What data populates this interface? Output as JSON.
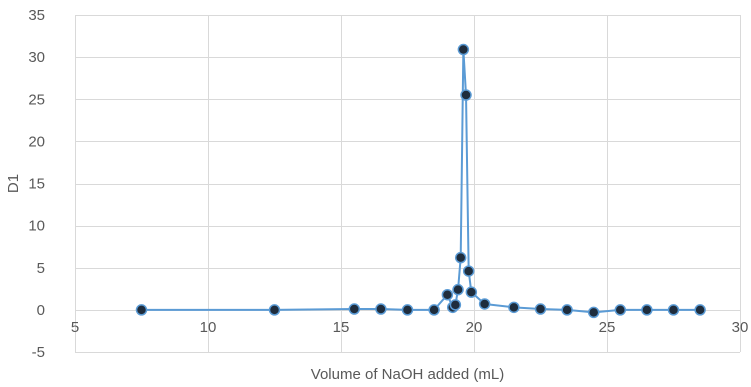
{
  "chart_data": {
    "type": "scatter",
    "xlabel": "Volume of NaOH added (mL)",
    "ylabel": "D1",
    "xlim": [
      5,
      30
    ],
    "ylim": [
      -5,
      35
    ],
    "x_ticks": [
      5,
      10,
      15,
      20,
      25,
      30
    ],
    "y_ticks": [
      -5,
      0,
      5,
      10,
      15,
      20,
      25,
      30,
      35
    ],
    "grid": true,
    "legend": "none",
    "series": [
      {
        "color": "#5b9bd5",
        "marker_color": "#1f2d3d",
        "points": [
          {
            "x": 7.5,
            "y": 0.0
          },
          {
            "x": 12.5,
            "y": 0.0
          },
          {
            "x": 15.5,
            "y": 0.1
          },
          {
            "x": 16.5,
            "y": 0.1
          },
          {
            "x": 17.5,
            "y": 0.0
          },
          {
            "x": 18.5,
            "y": 0.0
          },
          {
            "x": 19.0,
            "y": 1.8
          },
          {
            "x": 19.2,
            "y": 0.3
          },
          {
            "x": 19.3,
            "y": 0.6
          },
          {
            "x": 19.4,
            "y": 2.4
          },
          {
            "x": 19.5,
            "y": 6.2
          },
          {
            "x": 19.6,
            "y": 30.9
          },
          {
            "x": 19.7,
            "y": 25.5
          },
          {
            "x": 19.8,
            "y": 4.6
          },
          {
            "x": 19.9,
            "y": 2.1
          },
          {
            "x": 20.4,
            "y": 0.7
          },
          {
            "x": 21.5,
            "y": 0.3
          },
          {
            "x": 22.5,
            "y": 0.1
          },
          {
            "x": 23.5,
            "y": 0.0
          },
          {
            "x": 24.5,
            "y": -0.3
          },
          {
            "x": 25.5,
            "y": 0.0
          },
          {
            "x": 26.5,
            "y": 0.0
          },
          {
            "x": 27.5,
            "y": 0.0
          },
          {
            "x": 28.5,
            "y": 0.0
          }
        ]
      }
    ]
  }
}
